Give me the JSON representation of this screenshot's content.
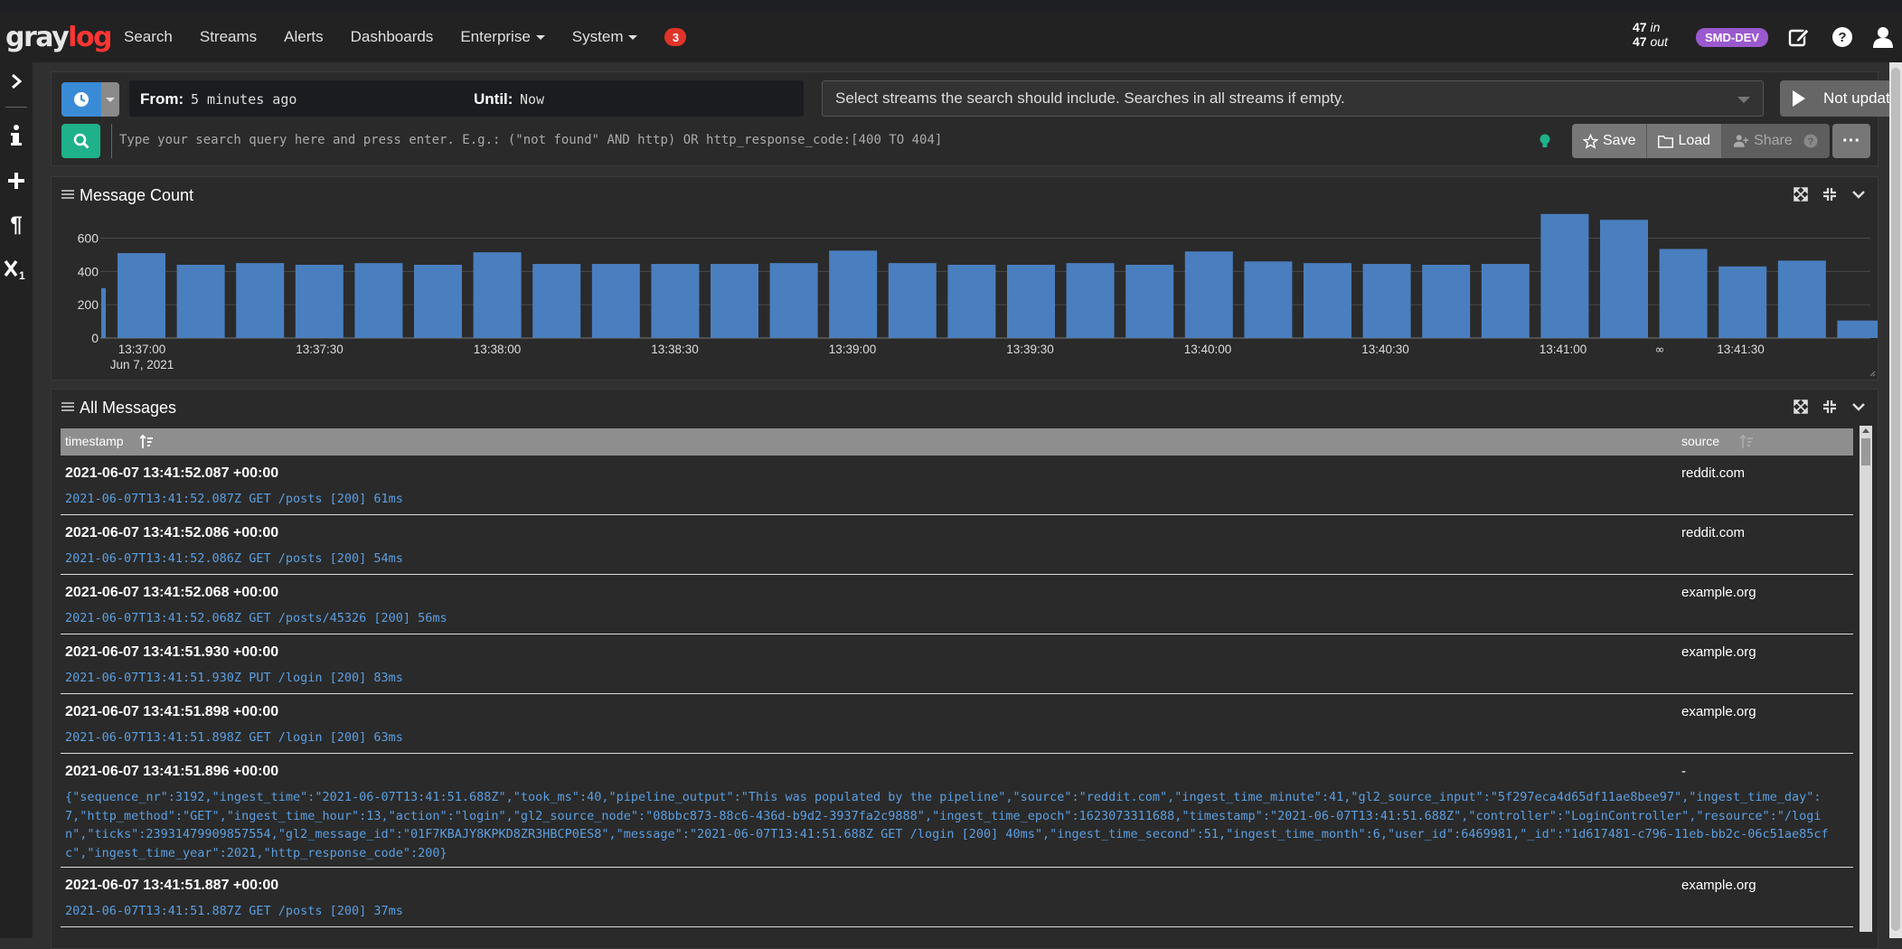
{
  "navbar": {
    "logo_main": "gray",
    "logo_accent": "log",
    "items": [
      {
        "label": "Search",
        "caret": false
      },
      {
        "label": "Streams",
        "caret": false
      },
      {
        "label": "Alerts",
        "caret": false
      },
      {
        "label": "Dashboards",
        "caret": false
      },
      {
        "label": "Enterprise",
        "caret": true
      },
      {
        "label": "System",
        "caret": true
      }
    ],
    "notification_count": "3",
    "throughput_in": "47",
    "throughput_in_label": "in",
    "throughput_out": "47",
    "throughput_out_label": "out",
    "environment": "SMD-DEV",
    "icons": [
      "edit-icon",
      "help-icon",
      "user-icon"
    ]
  },
  "sidebar": {
    "icons": [
      "expand-icon",
      "info-icon",
      "add-icon",
      "paragraph-icon",
      "subscript-icon"
    ]
  },
  "search": {
    "from_label": "From:",
    "from_value": "5 minutes ago",
    "until_label": "Until:",
    "until_value": "Now",
    "streams_placeholder": "Select streams the search should include. Searches in all streams if empty.",
    "refresh_label": "Not updating",
    "query_placeholder": "Type your search query here and press enter. E.g.: (\"not found\" AND http) OR http_response_code:[400 TO 404]",
    "save_label": "Save",
    "load_label": "Load",
    "share_label": "Share",
    "more_label": "···"
  },
  "message_count_widget": {
    "title": "Message Count"
  },
  "chart_data": {
    "type": "bar",
    "x_tick_labels": [
      "13:37:00",
      "13:37:30",
      "13:38:00",
      "13:38:30",
      "13:39:00",
      "13:39:30",
      "13:40:00",
      "13:40:30",
      "13:41:00",
      "13:41:30"
    ],
    "x_date_label": "Jun 7, 2021",
    "y_ticks": [
      0,
      200,
      400,
      600
    ],
    "ylim": [
      0,
      760
    ],
    "bar_color": "#4a7fbf",
    "first_partial_value": 300,
    "values": [
      510,
      440,
      450,
      440,
      450,
      440,
      515,
      445,
      445,
      445,
      445,
      450,
      525,
      450,
      440,
      440,
      450,
      440,
      520,
      460,
      450,
      445,
      440,
      445,
      745,
      710,
      535,
      430,
      465,
      105
    ],
    "annotation_label": "∞",
    "grid": true
  },
  "messages_widget": {
    "title": "All Messages",
    "col_timestamp": "timestamp",
    "col_source": "source",
    "rows": [
      {
        "timestamp": "2021-06-07 13:41:52.087 +00:00",
        "source": "reddit.com",
        "message": "2021-06-07T13:41:52.087Z GET /posts [200] 61ms"
      },
      {
        "timestamp": "2021-06-07 13:41:52.086 +00:00",
        "source": "reddit.com",
        "message": "2021-06-07T13:41:52.086Z GET /posts [200] 54ms"
      },
      {
        "timestamp": "2021-06-07 13:41:52.068 +00:00",
        "source": "example.org",
        "message": "2021-06-07T13:41:52.068Z GET /posts/45326 [200] 56ms"
      },
      {
        "timestamp": "2021-06-07 13:41:51.930 +00:00",
        "source": "example.org",
        "message": "2021-06-07T13:41:51.930Z PUT /login [200] 83ms"
      },
      {
        "timestamp": "2021-06-07 13:41:51.898 +00:00",
        "source": "example.org",
        "message": "2021-06-07T13:41:51.898Z GET /login [200] 63ms"
      },
      {
        "timestamp": "2021-06-07 13:41:51.896 +00:00",
        "source": "-",
        "message": "{\"sequence_nr\":3192,\"ingest_time\":\"2021-06-07T13:41:51.688Z\",\"took_ms\":40,\"pipeline_output\":\"This was populated by the pipeline\",\"source\":\"reddit.com\",\"ingest_time_minute\":41,\"gl2_source_input\":\"5f297eca4d65df11ae8bee97\",\"ingest_time_day\":7,\"http_method\":\"GET\",\"ingest_time_hour\":13,\"action\":\"login\",\"gl2_source_node\":\"08bbc873-88c6-436d-b9d2-3937fa2c9888\",\"ingest_time_epoch\":1623073311688,\"timestamp\":\"2021-06-07T13:41:51.688Z\",\"controller\":\"LoginController\",\"resource\":\"/login\",\"ticks\":23931479909857554,\"gl2_message_id\":\"01F7KBAJY8KPKD8ZR3HBCP0ES8\",\"message\":\"2021-06-07T13:41:51.688Z GET /login [200] 40ms\",\"ingest_time_second\":51,\"ingest_time_month\":6,\"user_id\":6469981,\"_id\":\"1d617481-c796-11eb-bb2c-06c51ae85cfc\",\"ingest_time_year\":2021,\"http_response_code\":200}"
      },
      {
        "timestamp": "2021-06-07 13:41:51.887 +00:00",
        "source": "example.org",
        "message": "2021-06-07T13:41:51.887Z GET /posts [200] 37ms"
      }
    ]
  }
}
